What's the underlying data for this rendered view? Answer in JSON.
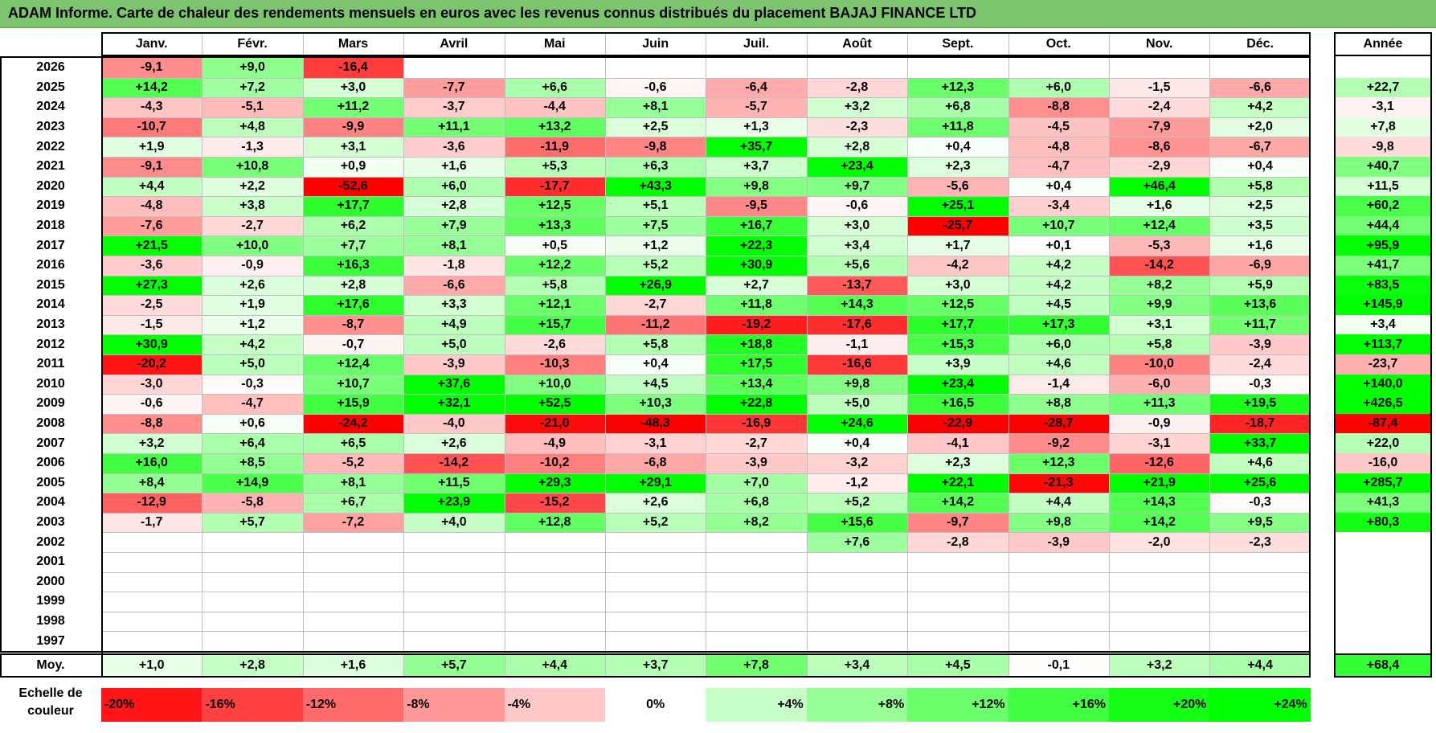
{
  "title": "ADAM Informe. Carte de chaleur des rendements mensuels en euros avec les revenus connus distribués du placement BAJAJ FINANCE LTD",
  "chart_data": {
    "type": "heatmap",
    "months": [
      "Janv.",
      "Févr.",
      "Mars",
      "Avril",
      "Mai",
      "Juin",
      "Juil.",
      "Août",
      "Sept.",
      "Oct.",
      "Nov.",
      "Déc."
    ],
    "year_header": "Année",
    "rows": [
      {
        "year": "2026",
        "months": [
          "-9,1",
          "+9,0",
          "-16,4",
          "",
          "",
          "",
          "",
          "",
          "",
          "",
          "",
          ""
        ],
        "annual": ""
      },
      {
        "year": "2025",
        "months": [
          "+14,2",
          "+7,2",
          "+3,0",
          "-7,7",
          "+6,6",
          "-0,6",
          "-6,4",
          "-2,8",
          "+12,3",
          "+6,0",
          "-1,5",
          "-6,6"
        ],
        "annual": "+22,7"
      },
      {
        "year": "2024",
        "months": [
          "-4,3",
          "-5,1",
          "+11,2",
          "-3,7",
          "-4,4",
          "+8,1",
          "-5,7",
          "+3,2",
          "+6,8",
          "-8,8",
          "-2,4",
          "+4,2"
        ],
        "annual": "-3,1"
      },
      {
        "year": "2023",
        "months": [
          "-10,7",
          "+4,8",
          "-9,9",
          "+11,1",
          "+13,2",
          "+2,5",
          "+1,3",
          "-2,3",
          "+11,8",
          "-4,5",
          "-7,9",
          "+2,0"
        ],
        "annual": "+7,8"
      },
      {
        "year": "2022",
        "months": [
          "+1,9",
          "-1,3",
          "+3,1",
          "-3,6",
          "-11,9",
          "-9,8",
          "+35,7",
          "+2,8",
          "+0,4",
          "-4,8",
          "-8,6",
          "-6,7"
        ],
        "annual": "-9,8"
      },
      {
        "year": "2021",
        "months": [
          "-9,1",
          "+10,8",
          "+0,9",
          "+1,6",
          "+5,3",
          "+6,3",
          "+3,7",
          "+23,4",
          "+2,3",
          "-4,7",
          "-2,9",
          "+0,4"
        ],
        "annual": "+40,7"
      },
      {
        "year": "2020",
        "months": [
          "+4,4",
          "+2,2",
          "-52,6",
          "+6,0",
          "-17,7",
          "+43,3",
          "+9,8",
          "+9,7",
          "-5,6",
          "+0,4",
          "+46,4",
          "+5,8"
        ],
        "annual": "+11,5"
      },
      {
        "year": "2019",
        "months": [
          "-4,8",
          "+3,8",
          "+17,7",
          "+2,8",
          "+12,5",
          "+5,1",
          "-9,5",
          "-0,6",
          "+25,1",
          "-3,4",
          "+1,6",
          "+2,5"
        ],
        "annual": "+60,2"
      },
      {
        "year": "2018",
        "months": [
          "-7,6",
          "-2,7",
          "+6,2",
          "+7,9",
          "+13,3",
          "+7,5",
          "+16,7",
          "+3,0",
          "-25,7",
          "+10,7",
          "+12,4",
          "+3,5"
        ],
        "annual": "+44,4"
      },
      {
        "year": "2017",
        "months": [
          "+21,5",
          "+10,0",
          "+7,7",
          "+8,1",
          "+0,5",
          "+1,2",
          "+22,3",
          "+3,4",
          "+1,7",
          "+0,1",
          "-5,3",
          "+1,6"
        ],
        "annual": "+95,9"
      },
      {
        "year": "2016",
        "months": [
          "-3,6",
          "-0,9",
          "+16,3",
          "-1,8",
          "+12,2",
          "+5,2",
          "+30,9",
          "+5,6",
          "-4,2",
          "+4,2",
          "-14,2",
          "-6,9"
        ],
        "annual": "+41,7"
      },
      {
        "year": "2015",
        "months": [
          "+27,3",
          "+2,6",
          "+2,8",
          "-6,6",
          "+5,8",
          "+26,9",
          "+2,7",
          "-13,7",
          "+3,0",
          "+4,2",
          "+8,2",
          "+5,9"
        ],
        "annual": "+83,5"
      },
      {
        "year": "2014",
        "months": [
          "-2,5",
          "+1,9",
          "+17,6",
          "+3,3",
          "+12,1",
          "-2,7",
          "+11,8",
          "+14,3",
          "+12,5",
          "+4,5",
          "+9,9",
          "+13,6"
        ],
        "annual": "+145,9"
      },
      {
        "year": "2013",
        "months": [
          "-1,5",
          "+1,2",
          "-8,7",
          "+4,9",
          "+15,7",
          "-11,2",
          "-19,2",
          "-17,6",
          "+17,7",
          "+17,3",
          "+3,1",
          "+11,7"
        ],
        "annual": "+3,4"
      },
      {
        "year": "2012",
        "months": [
          "+30,9",
          "+4,2",
          "-0,7",
          "+5,0",
          "-2,6",
          "+5,8",
          "+18,8",
          "-1,1",
          "+15,3",
          "+6,0",
          "+5,8",
          "-3,9"
        ],
        "annual": "+113,7"
      },
      {
        "year": "2011",
        "months": [
          "-20,2",
          "+5,0",
          "+12,4",
          "-3,9",
          "-10,3",
          "+0,4",
          "+17,5",
          "-16,6",
          "+3,9",
          "+4,6",
          "-10,0",
          "-2,4"
        ],
        "annual": "-23,7"
      },
      {
        "year": "2010",
        "months": [
          "-3,0",
          "-0,3",
          "+10,7",
          "+37,6",
          "+10,0",
          "+4,5",
          "+13,4",
          "+9,8",
          "+23,4",
          "-1,4",
          "-6,0",
          "-0,3"
        ],
        "annual": "+140,0"
      },
      {
        "year": "2009",
        "months": [
          "-0,6",
          "-4,7",
          "+15,9",
          "+32,1",
          "+52,5",
          "+10,3",
          "+22,8",
          "+5,0",
          "+16,5",
          "+8,8",
          "+11,3",
          "+19,5"
        ],
        "annual": "+426,5"
      },
      {
        "year": "2008",
        "months": [
          "-8,8",
          "+0,6",
          "-24,2",
          "-4,0",
          "-21,0",
          "-48,3",
          "-16,9",
          "+24,6",
          "-22,9",
          "-28,7",
          "-0,9",
          "-18,7"
        ],
        "annual": "-87,4"
      },
      {
        "year": "2007",
        "months": [
          "+3,2",
          "+6,4",
          "+6,5",
          "+2,6",
          "-4,9",
          "-3,1",
          "-2,7",
          "+0,4",
          "-4,1",
          "-9,2",
          "-3,1",
          "+33,7"
        ],
        "annual": "+22,0"
      },
      {
        "year": "2006",
        "months": [
          "+16,0",
          "+8,5",
          "-5,2",
          "-14,2",
          "-10,2",
          "-6,8",
          "-3,9",
          "-3,2",
          "+2,3",
          "+12,3",
          "-12,6",
          "+4,6"
        ],
        "annual": "-16,0"
      },
      {
        "year": "2005",
        "months": [
          "+8,4",
          "+14,9",
          "+8,1",
          "+11,5",
          "+29,3",
          "+29,1",
          "+7,0",
          "-1,2",
          "+22,1",
          "-21,3",
          "+21,9",
          "+25,6"
        ],
        "annual": "+285,7"
      },
      {
        "year": "2004",
        "months": [
          "-12,9",
          "-5,8",
          "+6,7",
          "+23,9",
          "-15,2",
          "+2,6",
          "+6,8",
          "+5,2",
          "+14,2",
          "+4,4",
          "+14,3",
          "-0,3"
        ],
        "annual": "+41,3"
      },
      {
        "year": "2003",
        "months": [
          "-1,7",
          "+5,7",
          "-7,2",
          "+4,0",
          "+12,8",
          "+5,2",
          "+8,2",
          "+15,6",
          "-9,7",
          "+9,8",
          "+14,2",
          "+9,5"
        ],
        "annual": "+80,3"
      },
      {
        "year": "2002",
        "months": [
          "",
          "",
          "",
          "",
          "",
          "",
          "",
          "+7,6",
          "-2,8",
          "-3,9",
          "-2,0",
          "-2,3"
        ],
        "annual": ""
      },
      {
        "year": "2001",
        "months": [
          "",
          "",
          "",
          "",
          "",
          "",
          "",
          "",
          "",
          "",
          "",
          ""
        ],
        "annual": ""
      },
      {
        "year": "2000",
        "months": [
          "",
          "",
          "",
          "",
          "",
          "",
          "",
          "",
          "",
          "",
          "",
          ""
        ],
        "annual": ""
      },
      {
        "year": "1999",
        "months": [
          "",
          "",
          "",
          "",
          "",
          "",
          "",
          "",
          "",
          "",
          "",
          ""
        ],
        "annual": ""
      },
      {
        "year": "1998",
        "months": [
          "",
          "",
          "",
          "",
          "",
          "",
          "",
          "",
          "",
          "",
          "",
          ""
        ],
        "annual": ""
      },
      {
        "year": "1997",
        "months": [
          "",
          "",
          "",
          "",
          "",
          "",
          "",
          "",
          "",
          "",
          "",
          ""
        ],
        "annual": ""
      }
    ],
    "average": {
      "label": "Moy.",
      "months": [
        "+1,0",
        "+2,8",
        "+1,6",
        "+5,7",
        "+4,4",
        "+3,7",
        "+7,8",
        "+3,4",
        "+4,5",
        "-0,1",
        "+3,2",
        "+4,4"
      ],
      "annual": "+68,4"
    },
    "color_scale": {
      "label": "Echelle de couleur",
      "stops": [
        {
          "label": "-20%",
          "value": -20
        },
        {
          "label": "-16%",
          "value": -16
        },
        {
          "label": "-12%",
          "value": -12
        },
        {
          "label": "-8%",
          "value": -8
        },
        {
          "label": "-4%",
          "value": -4
        },
        {
          "label": "0%",
          "value": 0
        },
        {
          "label": "+4%",
          "value": 4
        },
        {
          "label": "+8%",
          "value": 8
        },
        {
          "label": "+12%",
          "value": 12
        },
        {
          "label": "+16%",
          "value": 16
        },
        {
          "label": "+20%",
          "value": 20
        },
        {
          "label": "+24%",
          "value": 24
        }
      ]
    },
    "colors": {
      "negative": "#ff0000",
      "neutral": "#ffffff",
      "positive": "#00ff00",
      "title_bg": "#7dc46e"
    }
  }
}
